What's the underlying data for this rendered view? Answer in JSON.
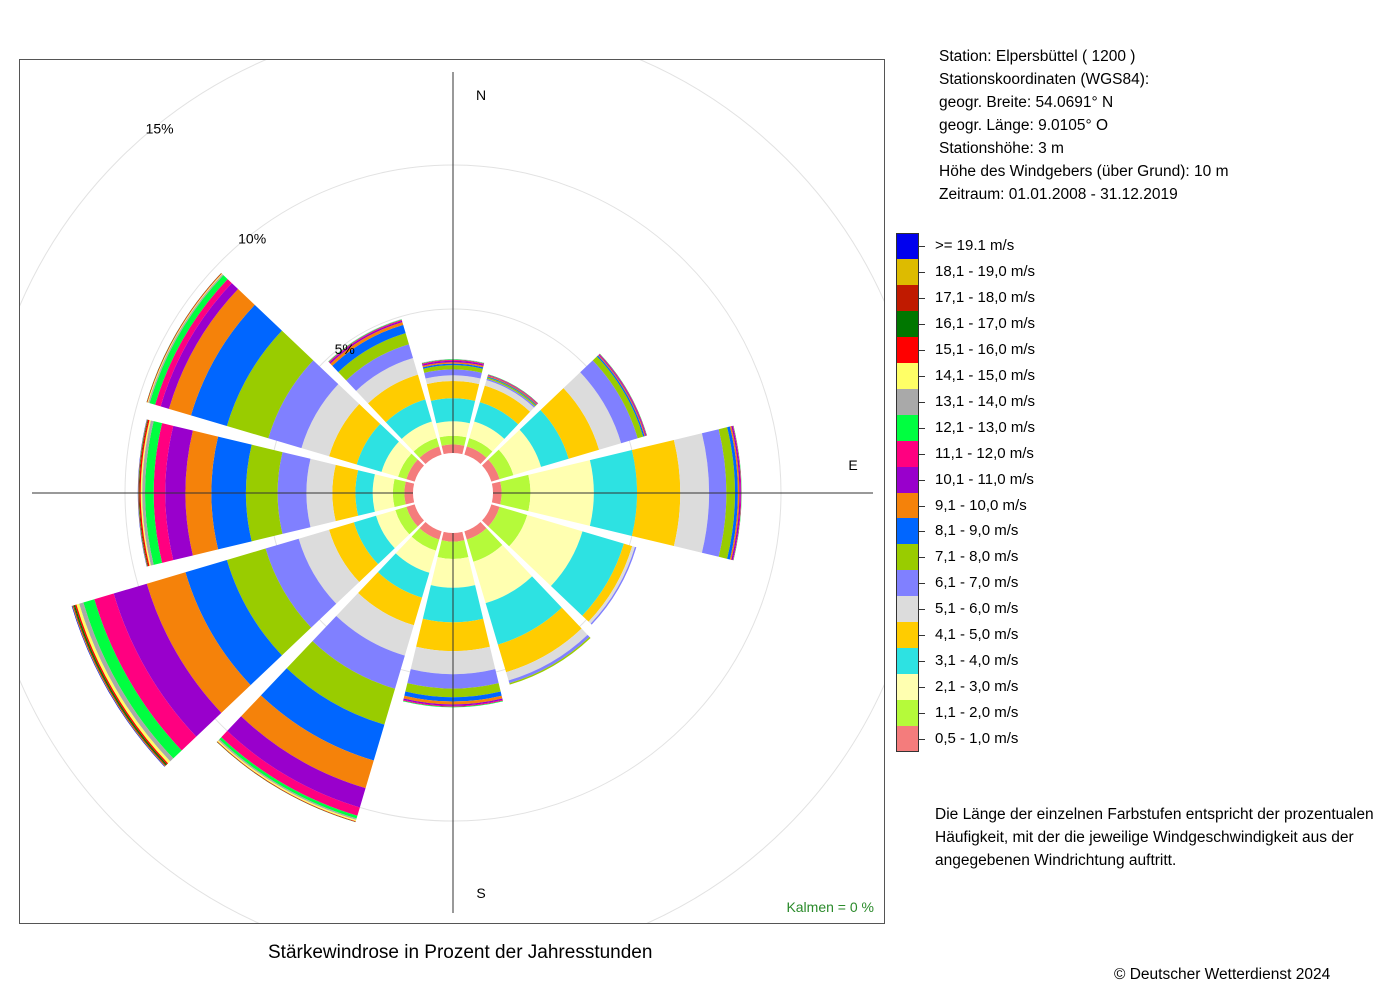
{
  "station_info": [
    "Station:  Elpersbüttel  ( 1200 )",
    "Stationskoordinaten (WGS84):",
    "geogr. Breite: 54.0691° N",
    "geogr. Länge:   9.0105° O",
    "Stationshöhe: 3 m",
    "Höhe des Windgebers (über Grund): 10 m",
    "Zeitraum: 01.01.2008 - 31.12.2019"
  ],
  "caption": "Stärkewindrose in Prozent der Jahresstunden",
  "copyright": "© Deutscher Wetterdienst  2024",
  "calm": "Kalmen  =  0 %",
  "description": "Die Länge der einzelnen Farbstufen entspricht der prozentualen Häufigkeit, mit der die jeweilige Windgeschwindigkeit aus der angegebenen Windrichtung auftritt.",
  "chart_data": {
    "type": "wind-rose",
    "title": "Stärkewindrose in Prozent der Jahresstunden",
    "directions": [
      "N",
      "NNE",
      "ENE",
      "E",
      "ESE",
      "SSE",
      "S",
      "SSW",
      "WSW",
      "W",
      "WNW",
      "NNW"
    ],
    "direction_degrees": [
      0,
      30,
      60,
      90,
      120,
      150,
      180,
      210,
      240,
      270,
      300,
      330
    ],
    "axis_labels": [
      "N",
      "E",
      "S"
    ],
    "ring_labels": [
      "5%",
      "10%",
      "15%"
    ],
    "ring_values": [
      5,
      10,
      15
    ],
    "ring_label_angle_deg": 320,
    "calms_percent": 0,
    "classes": [
      {
        "label": "0,5 - 1,0 m/s",
        "color": "#f47c7c"
      },
      {
        "label": "1,1 - 2,0 m/s",
        "color": "#b5fa3a"
      },
      {
        "label": "2,1 - 3,0 m/s",
        "color": "#ffffb0"
      },
      {
        "label": "3,1 - 4,0 m/s",
        "color": "#2de2e2"
      },
      {
        "label": "4,1 - 5,0 m/s",
        "color": "#ffcc00"
      },
      {
        "label": "5,1 - 6,0 m/s",
        "color": "#dcdcdc"
      },
      {
        "label": "6,1 - 7,0 m/s",
        "color": "#8080ff"
      },
      {
        "label": "7,1 - 8,0 m/s",
        "color": "#99cc00"
      },
      {
        "label": "8,1 - 9,0 m/s",
        "color": "#0066ff"
      },
      {
        "label": "9,1 - 10,0 m/s",
        "color": "#f5820a"
      },
      {
        "label": "10,1 - 11,0 m/s",
        "color": "#9900cc"
      },
      {
        "label": "11,1 - 12,0 m/s",
        "color": "#ff0080"
      },
      {
        "label": "12,1 - 13,0 m/s",
        "color": "#00ff40"
      },
      {
        "label": "13,1 - 14,0 m/s",
        "color": "#a9a9a9"
      },
      {
        "label": "14,1 - 15,0 m/s",
        "color": "#ffff66"
      },
      {
        "label": "15,1 - 16,0 m/s",
        "color": "#ff0000"
      },
      {
        "label": "16,1 - 17,0 m/s",
        "color": "#007700"
      },
      {
        "label": "17,1 - 18,0 m/s",
        "color": "#c01a00"
      },
      {
        "label": "18,1 - 19,0 m/s",
        "color": "#ddbb00"
      },
      {
        "label": ">= 19.1 m/s",
        "color": "#0000ee"
      }
    ],
    "legend_order_top_to_bottom": [
      ">= 19.1 m/s",
      "18,1 - 19,0 m/s",
      "17,1 - 18,0 m/s",
      "16,1 - 17,0 m/s",
      "15,1 - 16,0 m/s",
      "14,1 - 15,0 m/s",
      "13,1 - 14,0 m/s",
      "12,1 - 13,0 m/s",
      "11,1 - 12,0 m/s",
      "10,1 - 11,0 m/s",
      "9,1 - 10,0 m/s",
      "8,1 - 9,0 m/s",
      "7,1 - 8,0 m/s",
      "6,1 - 7,0 m/s",
      "5,1 - 6,0 m/s",
      "4,1 - 5,0 m/s",
      "3,1 - 4,0 m/s",
      "2,1 - 3,0 m/s",
      "1,1 - 2,0 m/s",
      "0,5 - 1,0 m/s"
    ],
    "series": [
      {
        "direction": "N",
        "values": [
          0.3,
          0.3,
          0.5,
          0.8,
          0.6,
          0.2,
          0.2,
          0.15,
          0.05,
          0.05,
          0.05,
          0.03,
          0.02,
          0.01,
          0,
          0,
          0,
          0,
          0,
          0
        ]
      },
      {
        "direction": "NNE",
        "values": [
          0.3,
          0.3,
          0.6,
          0.7,
          0.6,
          0.2,
          0.05,
          0.05,
          0.03,
          0.03,
          0.02,
          0.02,
          0.01,
          0,
          0,
          0,
          0,
          0,
          0,
          0
        ]
      },
      {
        "direction": "ENE",
        "values": [
          0.3,
          0.5,
          1.0,
          1.0,
          1.1,
          0.8,
          0.6,
          0.2,
          0.05,
          0.03,
          0.03,
          0.02,
          0.01,
          0,
          0,
          0,
          0,
          0,
          0,
          0
        ]
      },
      {
        "direction": "E",
        "values": [
          0.3,
          1.0,
          2.2,
          1.5,
          1.5,
          1.0,
          0.6,
          0.3,
          0.1,
          0.05,
          0.05,
          0.02,
          0.01,
          0,
          0,
          0,
          0,
          0,
          0,
          0
        ]
      },
      {
        "direction": "ESE",
        "values": [
          0.3,
          1.0,
          2.0,
          1.5,
          0.3,
          0.1,
          0.05,
          0,
          0,
          0,
          0,
          0,
          0,
          0,
          0,
          0,
          0,
          0,
          0,
          0
        ]
      },
      {
        "direction": "SSE",
        "values": [
          0.3,
          0.8,
          1.5,
          1.5,
          1.0,
          0.3,
          0.1,
          0.05,
          0,
          0,
          0,
          0,
          0,
          0,
          0,
          0,
          0,
          0,
          0,
          0
        ]
      },
      {
        "direction": "S",
        "values": [
          0.3,
          0.6,
          1.0,
          1.2,
          1.0,
          0.8,
          0.5,
          0.3,
          0.15,
          0.1,
          0.05,
          0.03,
          0.02,
          0,
          0,
          0,
          0,
          0,
          0,
          0
        ]
      },
      {
        "direction": "SSW",
        "values": [
          0.3,
          0.4,
          0.8,
          0.9,
          1.0,
          1.1,
          1.2,
          1.3,
          1.3,
          1.0,
          0.7,
          0.3,
          0.1,
          0.05,
          0.05,
          0.02,
          0.01,
          0,
          0,
          0
        ]
      },
      {
        "direction": "WSW",
        "values": [
          0.3,
          0.4,
          0.7,
          0.8,
          0.9,
          1.1,
          1.2,
          1.4,
          1.5,
          1.4,
          1.2,
          0.7,
          0.4,
          0.15,
          0.1,
          0.05,
          0.05,
          0.03,
          0.02,
          0.02
        ]
      },
      {
        "direction": "W",
        "values": [
          0.3,
          0.4,
          0.7,
          0.6,
          0.8,
          0.9,
          1.0,
          1.1,
          1.2,
          0.9,
          0.7,
          0.4,
          0.3,
          0.1,
          0.05,
          0.05,
          0.02,
          0.01,
          0.01,
          0.01
        ]
      },
      {
        "direction": "WNW",
        "values": [
          0.3,
          0.3,
          0.6,
          0.9,
          1.0,
          1.0,
          1.2,
          1.5,
          1.3,
          0.8,
          0.3,
          0.2,
          0.2,
          0.05,
          0.03,
          0.02,
          0.01,
          0,
          0,
          0
        ]
      },
      {
        "direction": "NNW",
        "values": [
          0.3,
          0.3,
          0.6,
          0.8,
          0.9,
          0.6,
          0.5,
          0.4,
          0.3,
          0.1,
          0.05,
          0.03,
          0.02,
          0.01,
          0,
          0,
          0,
          0,
          0,
          0
        ]
      }
    ]
  }
}
